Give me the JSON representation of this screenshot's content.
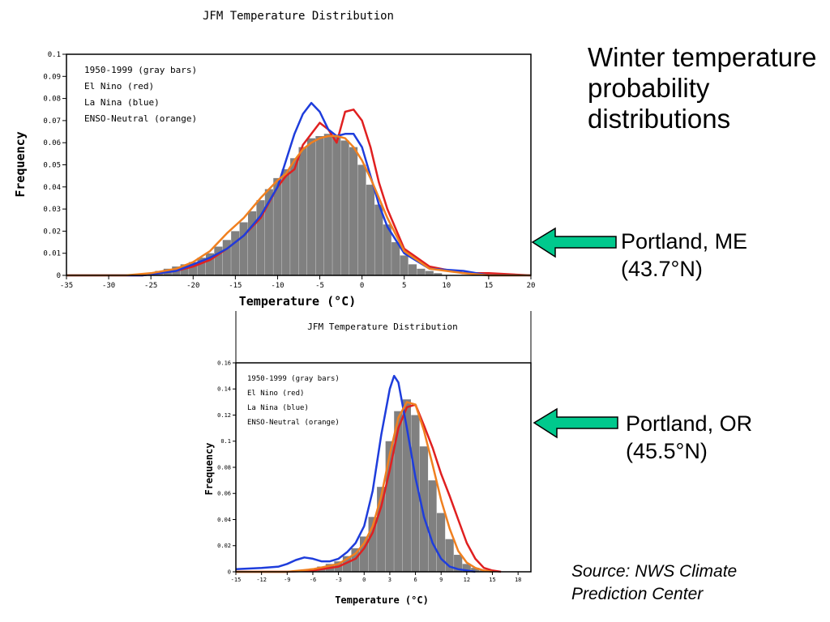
{
  "slide": {
    "title": "Winter temperature probability distributions",
    "annotation_top_name": "Portland, ME",
    "annotation_top_lat": "(43.7°N)",
    "annotation_bottom_name": "Portland, OR",
    "annotation_bottom_lat": "(45.5°N)",
    "source_line1": "Source:  NWS Climate",
    "source_line2": "Prediction Center",
    "arrow_color": "#00c98d"
  },
  "chart_data": [
    {
      "type": "bar",
      "location": "Portland, ME",
      "title": "JFM Temperature Distribution",
      "xlabel": "Temperature (°C)",
      "ylabel": "Frequency",
      "xlim": [
        -35,
        20
      ],
      "ylim": [
        0,
        0.1
      ],
      "xticks": [
        -35,
        -30,
        -25,
        -20,
        -15,
        -10,
        -5,
        0,
        5,
        10,
        15,
        20
      ],
      "xtick_labels": [
        "-35",
        "-30",
        "-25",
        "-20",
        "-15",
        "-10",
        "-5",
        "0",
        "5",
        "10",
        "15",
        "20"
      ],
      "yticks": [
        0,
        0.01,
        0.02,
        0.03,
        0.04,
        0.05,
        0.06,
        0.07,
        0.08,
        0.09,
        0.1
      ],
      "ytick_labels": [
        "0",
        "0.01",
        "0.02",
        "0.03",
        "0.04",
        "0.05",
        "0.06",
        "0.07",
        "0.08",
        "0.09",
        "0.1"
      ],
      "legend_lines": [
        "1950-1999 (gray bars)",
        "El Nino (red)",
        "La Nina (blue)",
        "ENSO-Neutral (orange)"
      ],
      "legend_position": "top-left",
      "bar_width": 1,
      "bars": [
        {
          "x": -25,
          "y": 0.001
        },
        {
          "x": -24,
          "y": 0.002
        },
        {
          "x": -23,
          "y": 0.003
        },
        {
          "x": -22,
          "y": 0.004
        },
        {
          "x": -21,
          "y": 0.005
        },
        {
          "x": -20,
          "y": 0.006
        },
        {
          "x": -19,
          "y": 0.008
        },
        {
          "x": -18,
          "y": 0.01
        },
        {
          "x": -17,
          "y": 0.013
        },
        {
          "x": -16,
          "y": 0.016
        },
        {
          "x": -15,
          "y": 0.02
        },
        {
          "x": -14,
          "y": 0.024
        },
        {
          "x": -13,
          "y": 0.029
        },
        {
          "x": -12,
          "y": 0.034
        },
        {
          "x": -11,
          "y": 0.039
        },
        {
          "x": -10,
          "y": 0.044
        },
        {
          "x": -9,
          "y": 0.048
        },
        {
          "x": -8,
          "y": 0.053
        },
        {
          "x": -7,
          "y": 0.058
        },
        {
          "x": -6,
          "y": 0.062
        },
        {
          "x": -5,
          "y": 0.063
        },
        {
          "x": -4,
          "y": 0.064
        },
        {
          "x": -3,
          "y": 0.063
        },
        {
          "x": -2,
          "y": 0.061
        },
        {
          "x": -1,
          "y": 0.058
        },
        {
          "x": 0,
          "y": 0.05
        },
        {
          "x": 1,
          "y": 0.041
        },
        {
          "x": 2,
          "y": 0.032
        },
        {
          "x": 3,
          "y": 0.023
        },
        {
          "x": 4,
          "y": 0.015
        },
        {
          "x": 5,
          "y": 0.009
        },
        {
          "x": 6,
          "y": 0.005
        },
        {
          "x": 7,
          "y": 0.003
        },
        {
          "x": 8,
          "y": 0.002
        },
        {
          "x": 9,
          "y": 0.001
        }
      ],
      "series": [
        {
          "color": "#e02020",
          "x": [
            -35,
            -26,
            -22,
            -20,
            -18,
            -16,
            -14,
            -12,
            -10,
            -9,
            -8,
            -7,
            -6,
            -5,
            -4,
            -3,
            -2,
            -1,
            0,
            1,
            2,
            3,
            5,
            8,
            12,
            15,
            20
          ],
          "y": [
            0,
            0,
            0.002,
            0.004,
            0.007,
            0.012,
            0.018,
            0.026,
            0.04,
            0.045,
            0.048,
            0.059,
            0.064,
            0.069,
            0.066,
            0.06,
            0.074,
            0.075,
            0.07,
            0.058,
            0.042,
            0.03,
            0.012,
            0.004,
            0.001,
            0.001,
            0
          ]
        },
        {
          "color": "#1e3ddc",
          "x": [
            -35,
            -26,
            -22,
            -20,
            -18,
            -16,
            -14,
            -12,
            -10,
            -9,
            -8,
            -7,
            -6,
            -5,
            -4,
            -3,
            -2,
            -1,
            0,
            1,
            2,
            3,
            5,
            8,
            12,
            15,
            20
          ],
          "y": [
            0,
            0,
            0.002,
            0.005,
            0.008,
            0.012,
            0.018,
            0.027,
            0.04,
            0.052,
            0.064,
            0.073,
            0.078,
            0.074,
            0.066,
            0.063,
            0.064,
            0.064,
            0.058,
            0.045,
            0.032,
            0.022,
            0.01,
            0.003,
            0.002,
            0,
            0
          ]
        },
        {
          "color": "#f08020",
          "x": [
            -35,
            -28,
            -25,
            -22,
            -20,
            -18,
            -16,
            -14,
            -12,
            -10,
            -9,
            -8,
            -7,
            -6,
            -5,
            -4,
            -3,
            -2,
            -1,
            0,
            1,
            2,
            3,
            5,
            8,
            12,
            15,
            20
          ],
          "y": [
            0,
            0,
            0.001,
            0.003,
            0.006,
            0.011,
            0.019,
            0.026,
            0.035,
            0.043,
            0.046,
            0.052,
            0.057,
            0.06,
            0.062,
            0.063,
            0.063,
            0.062,
            0.058,
            0.052,
            0.044,
            0.035,
            0.026,
            0.011,
            0.003,
            0.001,
            0,
            0
          ]
        }
      ]
    },
    {
      "type": "bar",
      "location": "Portland, OR",
      "title": "JFM Temperature Distribution",
      "xlabel": "Temperature (°C)",
      "ylabel": "Frequency",
      "xlim": [
        -15,
        19.5
      ],
      "ylim": [
        0,
        0.16
      ],
      "xticks": [
        -15,
        -12,
        -9,
        -6,
        -3,
        0,
        3,
        6,
        9,
        12,
        15,
        18
      ],
      "xtick_labels": [
        "-15",
        "-12",
        "-9",
        "-6",
        "-3",
        "0",
        "3",
        "6",
        "9",
        "12",
        "15",
        "18"
      ],
      "yticks": [
        0,
        0.02,
        0.04,
        0.06,
        0.08,
        0.1,
        0.12,
        0.14,
        0.16
      ],
      "ytick_labels": [
        "0",
        "0.02",
        "0.04",
        "0.06",
        "0.08",
        "0.1",
        "0.12",
        "0.14",
        "0.16"
      ],
      "legend_lines": [
        "1950-1999 (gray bars)",
        "El Nino (red)",
        "La Nina (blue)",
        "ENSO-Neutral (orange)"
      ],
      "legend_position": "top-left",
      "bar_width": 1,
      "bars": [
        {
          "x": -7,
          "y": 0.001
        },
        {
          "x": -6,
          "y": 0.002
        },
        {
          "x": -5,
          "y": 0.004
        },
        {
          "x": -4,
          "y": 0.006
        },
        {
          "x": -3,
          "y": 0.008
        },
        {
          "x": -2,
          "y": 0.012
        },
        {
          "x": -1,
          "y": 0.018
        },
        {
          "x": 0,
          "y": 0.027
        },
        {
          "x": 1,
          "y": 0.042
        },
        {
          "x": 2,
          "y": 0.065
        },
        {
          "x": 3,
          "y": 0.1
        },
        {
          "x": 4,
          "y": 0.123
        },
        {
          "x": 5,
          "y": 0.132
        },
        {
          "x": 6,
          "y": 0.12
        },
        {
          "x": 7,
          "y": 0.096
        },
        {
          "x": 8,
          "y": 0.07
        },
        {
          "x": 9,
          "y": 0.045
        },
        {
          "x": 10,
          "y": 0.025
        },
        {
          "x": 11,
          "y": 0.013
        },
        {
          "x": 12,
          "y": 0.006
        },
        {
          "x": 13,
          "y": 0.003
        },
        {
          "x": 14,
          "y": 0.001
        }
      ],
      "series": [
        {
          "color": "#e02020",
          "x": [
            -15,
            -9,
            -6,
            -3,
            -1,
            0,
            1,
            2,
            3,
            4,
            5,
            6,
            7,
            8,
            9,
            10,
            11,
            12,
            13,
            14,
            15,
            16
          ],
          "y": [
            0,
            0,
            0.001,
            0.004,
            0.01,
            0.018,
            0.03,
            0.05,
            0.078,
            0.11,
            0.126,
            0.128,
            0.112,
            0.095,
            0.075,
            0.058,
            0.04,
            0.022,
            0.01,
            0.003,
            0.001,
            0
          ]
        },
        {
          "color": "#1e3ddc",
          "x": [
            -15,
            -12,
            -10,
            -9,
            -8,
            -7,
            -6,
            -5,
            -4,
            -3,
            -2,
            -1,
            0,
            1,
            2,
            3,
            3.5,
            4,
            5,
            6,
            7,
            8,
            9,
            10,
            11,
            12,
            13
          ],
          "y": [
            0.002,
            0.003,
            0.004,
            0.006,
            0.009,
            0.011,
            0.01,
            0.008,
            0.008,
            0.01,
            0.015,
            0.022,
            0.035,
            0.062,
            0.105,
            0.14,
            0.15,
            0.145,
            0.11,
            0.072,
            0.042,
            0.022,
            0.01,
            0.004,
            0.002,
            0.001,
            0
          ]
        },
        {
          "color": "#f08020",
          "x": [
            -15,
            -9,
            -6,
            -3,
            -1,
            0,
            1,
            2,
            3,
            4,
            5,
            6,
            7,
            8,
            9,
            10,
            11,
            12,
            13,
            14,
            15
          ],
          "y": [
            0,
            0,
            0.002,
            0.006,
            0.014,
            0.022,
            0.035,
            0.058,
            0.09,
            0.118,
            0.13,
            0.128,
            0.108,
            0.082,
            0.055,
            0.033,
            0.016,
            0.007,
            0.003,
            0.001,
            0
          ]
        }
      ]
    }
  ]
}
